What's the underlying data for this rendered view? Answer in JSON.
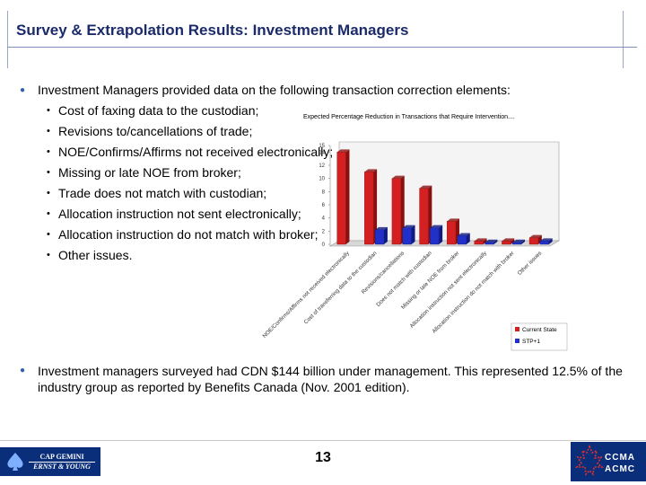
{
  "header": {
    "title": "Survey & Extrapolation Results: Investment Managers"
  },
  "intro": {
    "text": "Investment Managers provided data on the following transaction correction elements:",
    "items": [
      "Cost of faxing data to the custodian;",
      "Revisions to/cancellations of trade;",
      "NOE/Confirms/Affirms not received electronically;",
      "Missing or late NOE from broker;",
      "Trade does not match with custodian;",
      "Allocation instruction not sent electronically;",
      "Allocation instruction do not match with broker;",
      "Other issues."
    ]
  },
  "chart_data": {
    "type": "bar",
    "title": "Expected Percentage Reduction in Transactions that Require Intervention....",
    "categories": [
      "NOE/Confirms/Affirms not received electronically",
      "Cost of transferring data to the custodian",
      "Revisions/cancellations",
      "Does not match with custodian",
      "Missing or late NOE from broker",
      "Allocation instruction not sent electronically",
      "Allocation instruction do not match with broker",
      "Other issues"
    ],
    "series": [
      {
        "name": "Current State",
        "color": "#d42020",
        "values": [
          14,
          11,
          10,
          8.5,
          3.5,
          0.5,
          0.5,
          1
        ]
      },
      {
        "name": "STP+1",
        "color": "#2030c8",
        "values": [
          0,
          2.2,
          2.5,
          2.5,
          1.3,
          0.3,
          0.3,
          0.5
        ]
      }
    ],
    "ylim": [
      0,
      15
    ],
    "yticks": [
      "0",
      "2",
      "4",
      "6",
      "8",
      "10",
      "12",
      "14",
      "15"
    ],
    "legend": "bottom-right"
  },
  "summary": {
    "text": "Investment managers surveyed had CDN $144 billion under management. This represented 12.5% of the industry group as reported by Benefits Canada (Nov. 2001 edition)."
  },
  "footer": {
    "page_number": "13",
    "left_logo_line1": "CAP GEMINI",
    "left_logo_line2": "ERNST & YOUNG",
    "right_logo_line1": "CCMA",
    "right_logo_line2": "ACMC"
  }
}
